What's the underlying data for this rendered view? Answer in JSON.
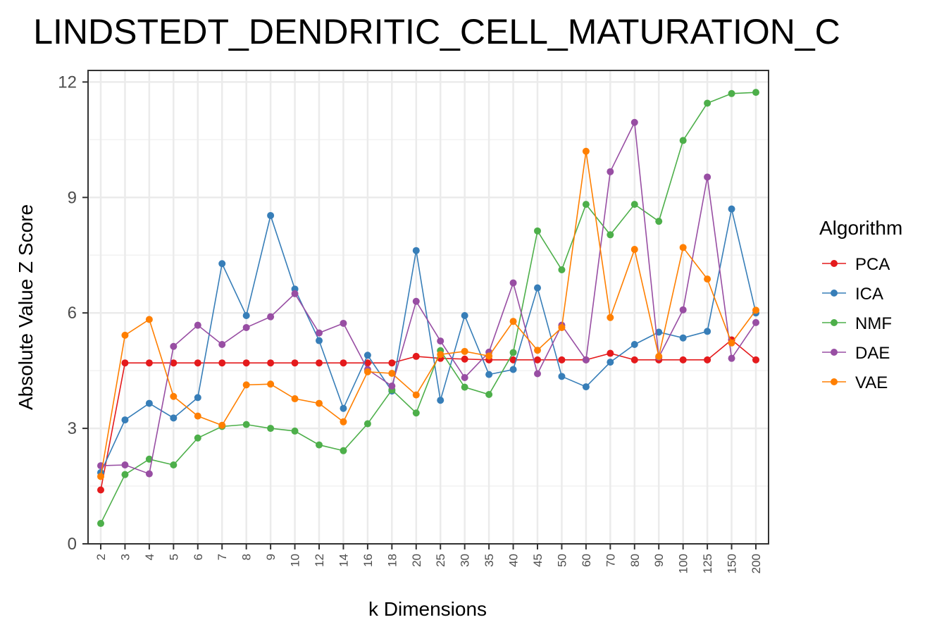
{
  "chart_data": {
    "type": "line",
    "title": "LINDSTEDT_DENDRITIC_CELL_MATURATION_C",
    "xlabel": "k Dimensions",
    "ylabel": "Absolute Value Z Score",
    "x": [
      "2",
      "3",
      "4",
      "5",
      "6",
      "7",
      "8",
      "9",
      "10",
      "12",
      "14",
      "16",
      "18",
      "20",
      "25",
      "30",
      "35",
      "40",
      "45",
      "50",
      "60",
      "70",
      "80",
      "90",
      "100",
      "125",
      "150",
      "200"
    ],
    "yticks": [
      0,
      3,
      6,
      9,
      12
    ],
    "ytick_labels": [
      "0",
      "3",
      "6",
      "9",
      "12"
    ],
    "ylim": [
      0,
      12.3
    ],
    "grid": true,
    "legend": {
      "title": "Algorithm",
      "position": "right"
    },
    "series": [
      {
        "name": "PCA",
        "color": "#e41a1c",
        "values": [
          1.4,
          4.7,
          4.7,
          4.7,
          4.7,
          4.7,
          4.7,
          4.7,
          4.7,
          4.7,
          4.7,
          4.7,
          4.7,
          4.87,
          4.82,
          4.8,
          4.78,
          4.78,
          4.78,
          4.78,
          4.78,
          4.95,
          4.78,
          4.78,
          4.78,
          4.78,
          5.3,
          4.78
        ]
      },
      {
        "name": "ICA",
        "color": "#377eb8",
        "values": [
          1.85,
          3.22,
          3.65,
          3.27,
          3.8,
          7.28,
          5.93,
          8.53,
          6.62,
          5.28,
          3.52,
          4.9,
          3.97,
          7.62,
          3.73,
          5.93,
          4.4,
          4.53,
          6.65,
          4.35,
          4.08,
          4.72,
          5.18,
          5.5,
          5.35,
          5.52,
          8.7,
          6.0
        ]
      },
      {
        "name": "NMF",
        "color": "#4daf4a",
        "values": [
          0.53,
          1.8,
          2.2,
          2.05,
          2.75,
          3.05,
          3.1,
          3.0,
          2.93,
          2.57,
          2.42,
          3.12,
          4.0,
          3.4,
          5.02,
          4.07,
          3.88,
          4.97,
          8.13,
          7.12,
          8.82,
          8.03,
          8.82,
          8.38,
          10.48,
          11.45,
          11.7,
          11.73
        ]
      },
      {
        "name": "DAE",
        "color": "#984ea3",
        "values": [
          2.03,
          2.05,
          1.82,
          5.13,
          5.68,
          5.18,
          5.62,
          5.9,
          6.5,
          5.48,
          5.73,
          4.53,
          4.1,
          6.3,
          5.27,
          4.32,
          4.98,
          6.78,
          4.42,
          5.68,
          4.78,
          9.67,
          10.95,
          4.85,
          6.08,
          9.53,
          4.82,
          5.75
        ]
      },
      {
        "name": "VAE",
        "color": "#ff7f00",
        "values": [
          1.75,
          5.42,
          5.83,
          3.83,
          3.32,
          3.08,
          4.13,
          4.15,
          3.77,
          3.65,
          3.17,
          4.47,
          4.43,
          3.87,
          4.92,
          5.0,
          4.88,
          5.78,
          5.03,
          5.62,
          10.2,
          5.88,
          7.65,
          4.87,
          7.7,
          6.88,
          5.22,
          6.07
        ]
      }
    ]
  }
}
